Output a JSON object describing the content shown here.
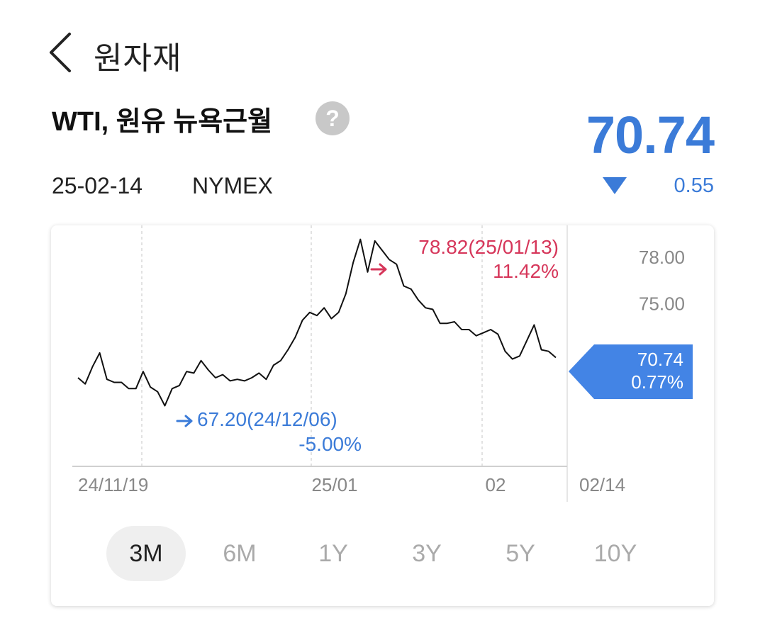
{
  "header": {
    "title": "원자재",
    "back_icon": "chevron-left-icon"
  },
  "asset": {
    "name": "WTI, 원유 뉴욕근월",
    "help_glyph": "?",
    "price": "70.74",
    "date": "25-02-14",
    "exchange": "NYMEX",
    "change": "0.55",
    "direction": "down"
  },
  "colors": {
    "up": "#d6365a",
    "down": "#3b7bd8",
    "line": "#111111",
    "grid": "#d8d8d8"
  },
  "chart_data": {
    "type": "line",
    "x_ticks": [
      "24/11/19",
      "25/01",
      "02",
      "02/14"
    ],
    "y_ticks": [
      "78.00",
      "75.00"
    ],
    "ylim": [
      64.5,
      80.0
    ],
    "values": [
      70.2,
      69.8,
      70.9,
      71.8,
      70.1,
      69.9,
      69.9,
      69.5,
      69.5,
      70.6,
      69.6,
      69.3,
      68.4,
      69.5,
      69.7,
      70.6,
      70.5,
      71.3,
      70.7,
      70.2,
      70.4,
      70.0,
      70.1,
      70.0,
      70.2,
      70.5,
      70.1,
      71.0,
      71.3,
      72.0,
      72.8,
      73.9,
      74.4,
      74.2,
      74.7,
      74.0,
      74.4,
      75.6,
      77.6,
      79.1,
      77.0,
      79.0,
      78.4,
      77.8,
      77.5,
      76.1,
      75.9,
      75.2,
      74.7,
      74.6,
      73.7,
      73.7,
      73.8,
      73.3,
      73.3,
      72.9,
      73.1,
      73.3,
      73.0,
      71.9,
      71.4,
      71.6,
      72.6,
      73.6,
      72.0,
      71.9,
      71.5
    ],
    "low": {
      "label": "67.20(24/12/06)",
      "pct": "-5.00%",
      "index": 12
    },
    "high": {
      "label": "78.82(25/01/13)",
      "pct": "11.42%",
      "index": 39
    },
    "last": {
      "value": "70.74",
      "pct": "0.77%"
    }
  },
  "ranges": [
    "3M",
    "6M",
    "1Y",
    "3Y",
    "5Y",
    "10Y"
  ],
  "active_range": "3M"
}
